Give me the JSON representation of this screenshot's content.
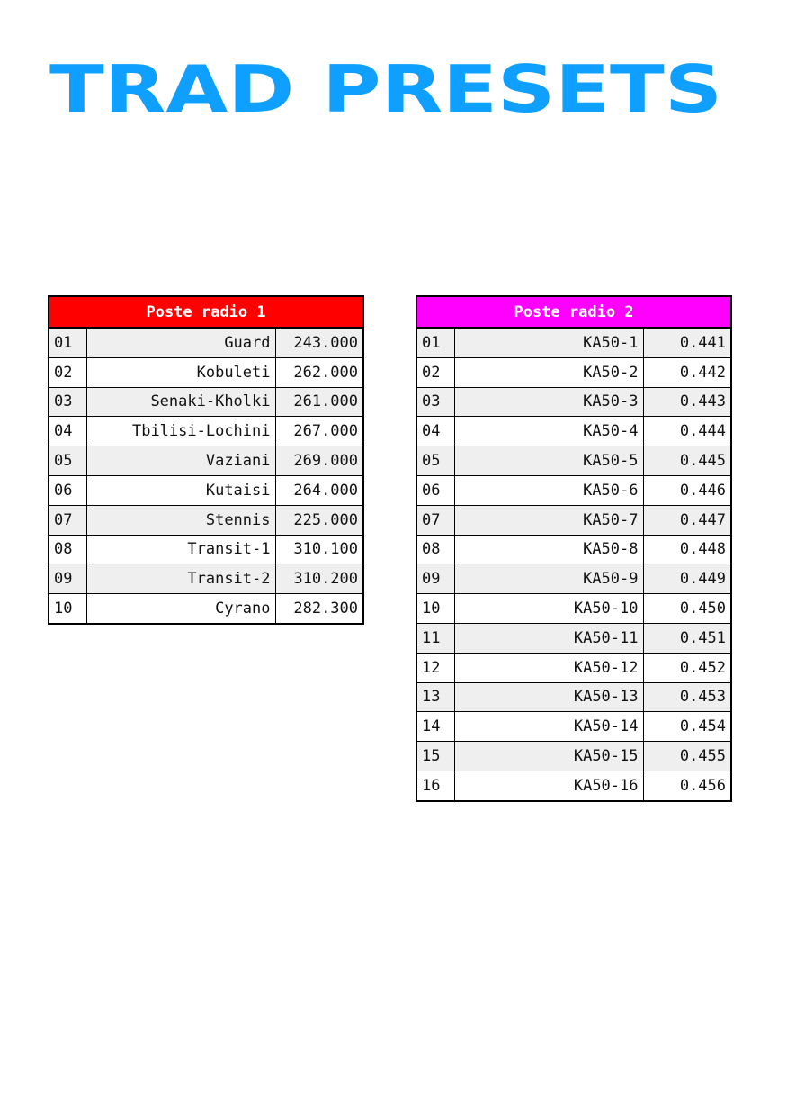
{
  "title": "TRAD PRESETS",
  "colors": {
    "title": "#0fa0ff",
    "radio1_header": "#ff0000",
    "radio2_header": "#ff00ff"
  },
  "radio1": {
    "header": "Poste radio 1",
    "rows": [
      {
        "num": "01",
        "name": "Guard",
        "freq": "243.000"
      },
      {
        "num": "02",
        "name": "Kobuleti",
        "freq": "262.000"
      },
      {
        "num": "03",
        "name": "Senaki-Kholki",
        "freq": "261.000"
      },
      {
        "num": "04",
        "name": "Tbilisi-Lochini",
        "freq": "267.000"
      },
      {
        "num": "05",
        "name": "Vaziani",
        "freq": "269.000"
      },
      {
        "num": "06",
        "name": "Kutaisi",
        "freq": "264.000"
      },
      {
        "num": "07",
        "name": "Stennis",
        "freq": "225.000"
      },
      {
        "num": "08",
        "name": "Transit-1",
        "freq": "310.100"
      },
      {
        "num": "09",
        "name": "Transit-2",
        "freq": "310.200"
      },
      {
        "num": "10",
        "name": "Cyrano",
        "freq": "282.300"
      }
    ]
  },
  "radio2": {
    "header": "Poste radio 2",
    "rows": [
      {
        "num": "01",
        "name": "KA50-1",
        "freq": "0.441"
      },
      {
        "num": "02",
        "name": "KA50-2",
        "freq": "0.442"
      },
      {
        "num": "03",
        "name": "KA50-3",
        "freq": "0.443"
      },
      {
        "num": "04",
        "name": "KA50-4",
        "freq": "0.444"
      },
      {
        "num": "05",
        "name": "KA50-5",
        "freq": "0.445"
      },
      {
        "num": "06",
        "name": "KA50-6",
        "freq": "0.446"
      },
      {
        "num": "07",
        "name": "KA50-7",
        "freq": "0.447"
      },
      {
        "num": "08",
        "name": "KA50-8",
        "freq": "0.448"
      },
      {
        "num": "09",
        "name": "KA50-9",
        "freq": "0.449"
      },
      {
        "num": "10",
        "name": "KA50-10",
        "freq": "0.450"
      },
      {
        "num": "11",
        "name": "KA50-11",
        "freq": "0.451"
      },
      {
        "num": "12",
        "name": "KA50-12",
        "freq": "0.452"
      },
      {
        "num": "13",
        "name": "KA50-13",
        "freq": "0.453"
      },
      {
        "num": "14",
        "name": "KA50-14",
        "freq": "0.454"
      },
      {
        "num": "15",
        "name": "KA50-15",
        "freq": "0.455"
      },
      {
        "num": "16",
        "name": "KA50-16",
        "freq": "0.456"
      }
    ]
  }
}
